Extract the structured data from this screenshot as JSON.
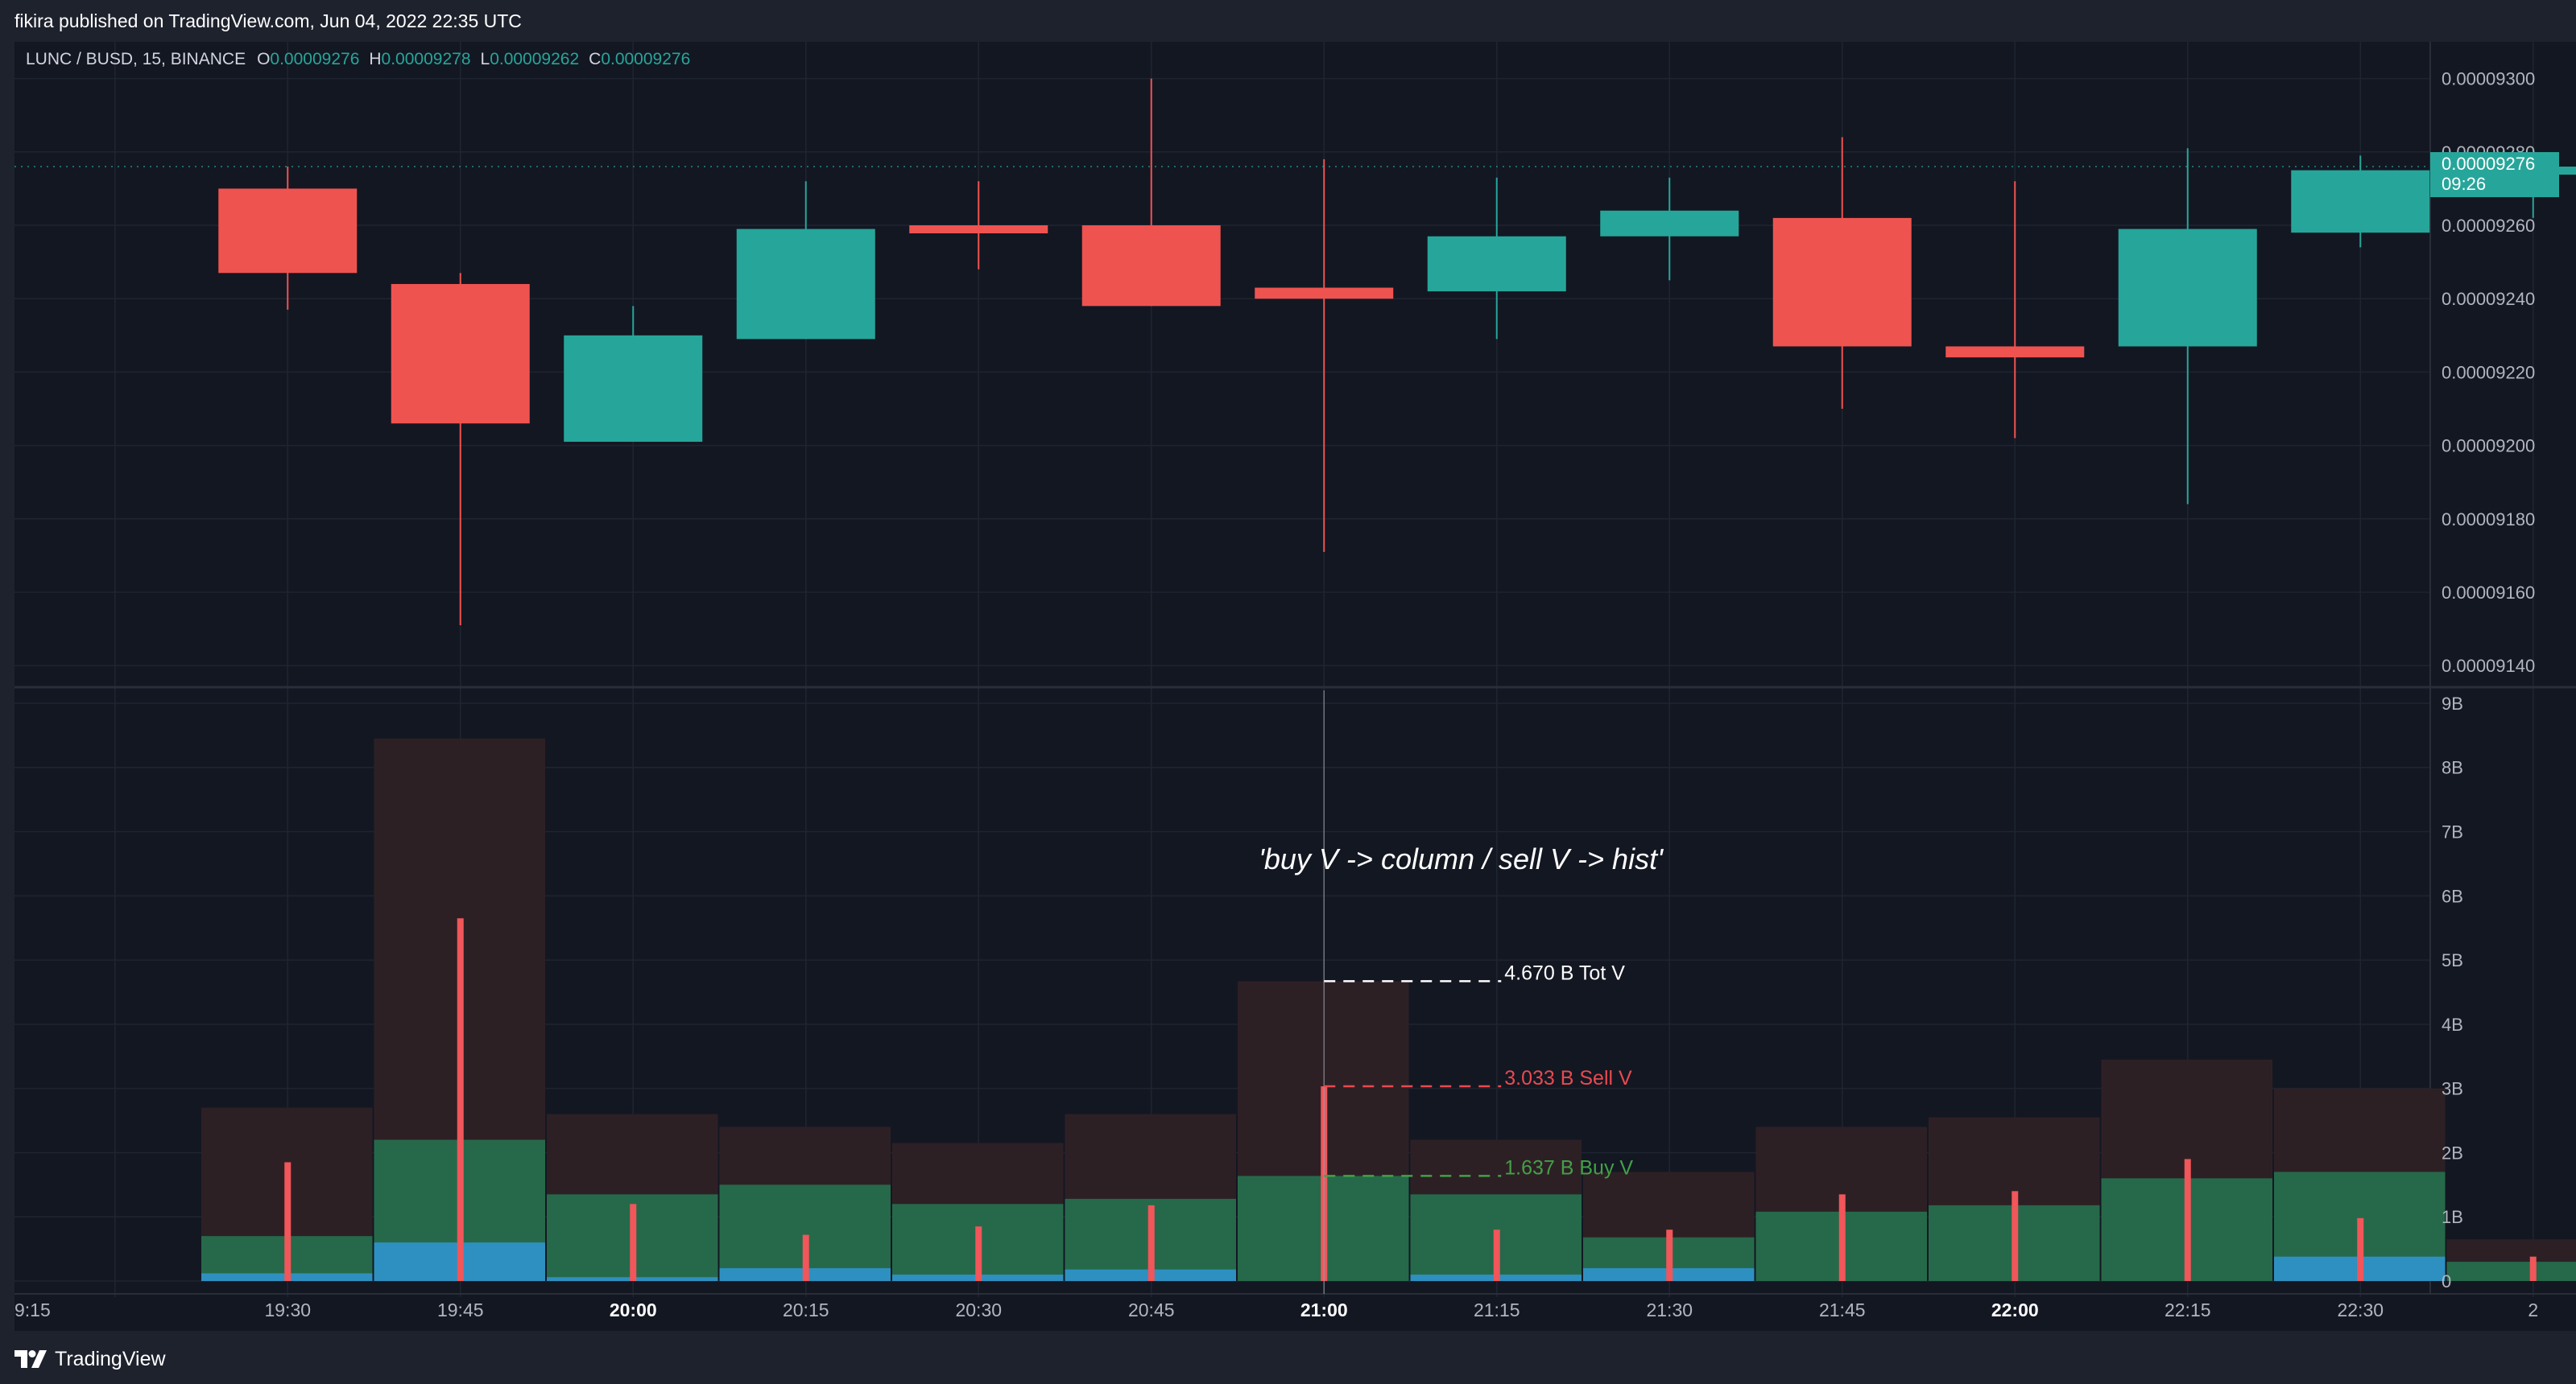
{
  "header": {
    "published": "fikira published on TradingView.com, Jun 04, 2022 22:35 UTC"
  },
  "legend": {
    "symbol": "LUNC / BUSD, 15, BINANCE",
    "o_label": "O",
    "o": "0.00009276",
    "h_label": "H",
    "h": "0.00009278",
    "l_label": "L",
    "l": "0.00009262",
    "c_label": "C",
    "c": "0.00009276"
  },
  "brand": {
    "name": "TradingView",
    "logo_icon": "tradingview-logo-icon"
  },
  "colors": {
    "up": "#26a69a",
    "down": "#ef5350",
    "buy_vol": "#26694a",
    "tot_vol": "#2d2025",
    "small_vol": "#2e90c0",
    "sell_line": "#f0565a",
    "label_tot": "#ffffff",
    "label_sell": "#e84a4f",
    "label_buy": "#43a047",
    "background": "#131722",
    "grid": "#1f2431",
    "axis_text": "#b2b5be"
  },
  "annotation": "'buy V -> column / sell V -> hist'",
  "price_label": {
    "value": "0.00009276",
    "countdown": "09:26"
  },
  "chart_data": [
    {
      "type": "candlestick",
      "title": "LUNC / BUSD, 15, BINANCE",
      "categories": [
        "19:15",
        "19:30",
        "19:45",
        "20:00",
        "20:15",
        "20:30",
        "20:45",
        "21:00",
        "21:15",
        "21:30",
        "21:45",
        "22:00",
        "22:15",
        "22:30"
      ],
      "x_tick_labels": [
        "9:15",
        "19:30",
        "19:45",
        "20:00",
        "20:15",
        "20:30",
        "20:45",
        "21:00",
        "21:15",
        "21:30",
        "21:45",
        "22:00",
        "22:15",
        "22:30",
        "2"
      ],
      "x_tick_bold": [
        "20:00",
        "21:00",
        "22:00"
      ],
      "open": [
        9.27e-05,
        9.244e-05,
        9.201e-05,
        9.229e-05,
        9.26e-05,
        9.26e-05,
        9.243e-05,
        9.242e-05,
        9.257e-05,
        9.262e-05,
        9.227e-05,
        9.227e-05,
        9.258e-05,
        9.276e-05
      ],
      "high": [
        9.276e-05,
        9.247e-05,
        9.238e-05,
        9.272e-05,
        9.272e-05,
        9.3e-05,
        9.278e-05,
        9.273e-05,
        9.273e-05,
        9.284e-05,
        9.272e-05,
        9.281e-05,
        9.279e-05,
        9.278e-05
      ],
      "low": [
        9.237e-05,
        9.151e-05,
        9.201e-05,
        9.229e-05,
        9.248e-05,
        9.238e-05,
        9.171e-05,
        9.229e-05,
        9.245e-05,
        9.21e-05,
        9.202e-05,
        9.184e-05,
        9.254e-05,
        9.262e-05
      ],
      "close": [
        9.247e-05,
        9.206e-05,
        9.23e-05,
        9.259e-05,
        9.258e-05,
        9.238e-05,
        9.24e-05,
        9.257e-05,
        9.264e-05,
        9.227e-05,
        9.224e-05,
        9.259e-05,
        9.275e-05,
        9.276e-05
      ],
      "ylim": [
        9.135e-05,
        9.31e-05
      ],
      "y_ticks": [
        9.14e-05,
        9.16e-05,
        9.18e-05,
        9.2e-05,
        9.22e-05,
        9.24e-05,
        9.26e-05,
        9.28e-05,
        9.3e-05
      ],
      "y_tick_labels": [
        "0.00009140",
        "0.00009160",
        "0.00009180",
        "0.00009200",
        "0.00009220",
        "0.00009240",
        "0.00009260",
        "0.00009280",
        "0.00009300"
      ],
      "last_price": 9.276e-05
    },
    {
      "type": "bar",
      "categories": [
        "19:15",
        "19:30",
        "19:45",
        "20:00",
        "20:15",
        "20:30",
        "20:45",
        "21:00",
        "21:15",
        "21:30",
        "21:45",
        "22:00",
        "22:15",
        "22:30"
      ],
      "series": [
        {
          "name": "Tot V",
          "values": [
            2.7,
            8.45,
            2.6,
            2.4,
            2.15,
            2.6,
            4.67,
            2.2,
            1.7,
            2.4,
            2.55,
            3.45,
            3.0,
            0.65
          ]
        },
        {
          "name": "Buy V",
          "values": [
            0.7,
            2.2,
            1.35,
            1.5,
            1.2,
            1.28,
            1.637,
            1.35,
            0.68,
            1.08,
            1.18,
            1.6,
            1.7,
            0.3
          ]
        },
        {
          "name": "",
          "values": [
            0.12,
            0.6,
            0.06,
            0.2,
            0.1,
            0.18,
            0.0,
            0.1,
            0.2,
            0.0,
            0.0,
            0.0,
            0.38,
            0.0
          ]
        },
        {
          "name": "Sell V",
          "values": [
            1.85,
            5.65,
            1.2,
            0.72,
            0.85,
            1.18,
            3.033,
            0.8,
            0.8,
            1.35,
            1.4,
            1.9,
            0.98,
            0.38
          ]
        }
      ],
      "ylim": [
        -0.15,
        9.2
      ],
      "y_ticks": [
        0,
        1,
        2,
        3,
        4,
        5,
        6,
        7,
        8,
        9
      ],
      "y_tick_labels": [
        "0",
        "1B",
        "2B",
        "3B",
        "4B",
        "5B",
        "6B",
        "7B",
        "8B",
        "9B"
      ],
      "labels": [
        {
          "text": "4.670 B Tot V",
          "value": 4.67,
          "series": "tot"
        },
        {
          "text": "3.033 B Sell V",
          "value": 3.033,
          "series": "sell"
        },
        {
          "text": "1.637 B Buy V",
          "value": 1.637,
          "series": "buy"
        }
      ],
      "highlight_category": "20:45"
    }
  ]
}
